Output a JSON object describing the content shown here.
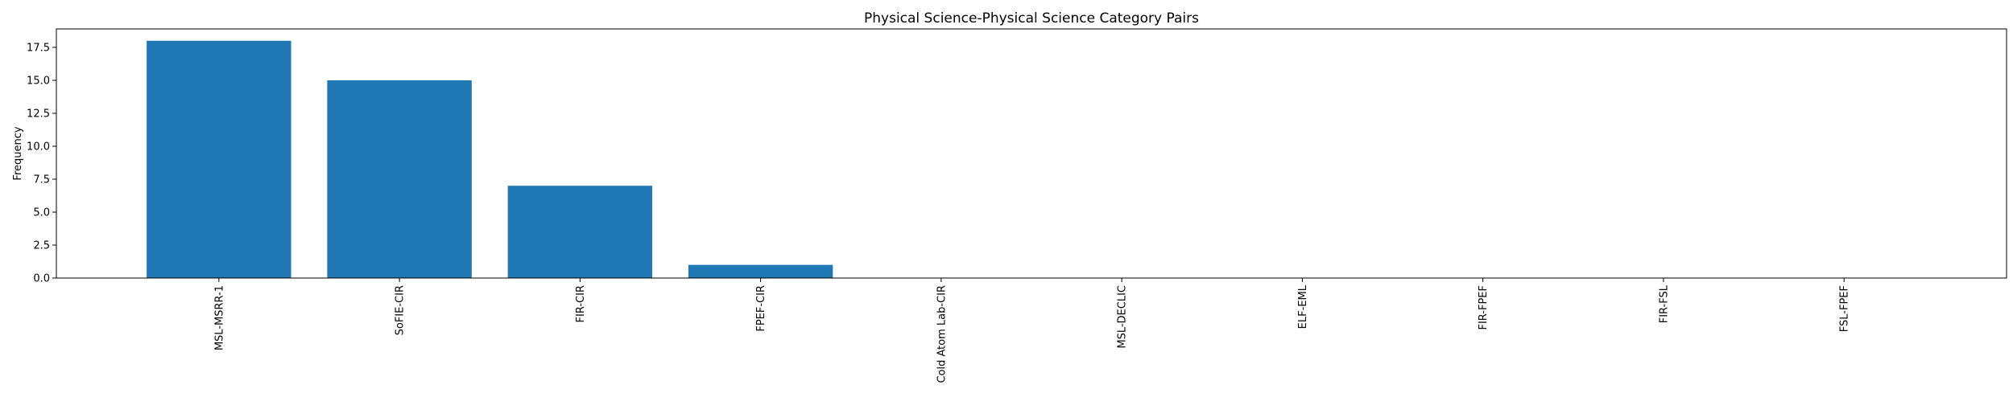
{
  "chart_data": {
    "type": "bar",
    "title": "Physical Science-Physical Science Category Pairs",
    "xlabel": "",
    "ylabel": "Frequency",
    "categories": [
      "MSL-MSRR-1",
      "SoFIE-CIR",
      "FIR-CIR",
      "FPEF-CIR",
      "Cold Atom Lab-CIR",
      "MSL-DECLIC",
      "ELF-EML",
      "FIR-FPEF",
      "FIR-FSL",
      "FSL-FPEF"
    ],
    "values": [
      18,
      15,
      7,
      1,
      0,
      0,
      0,
      0,
      0,
      0
    ],
    "ylim": [
      0,
      18.9
    ],
    "yticks": [
      0.0,
      2.5,
      5.0,
      7.5,
      10.0,
      12.5,
      15.0,
      17.5
    ],
    "ytick_labels": [
      "0.0",
      "2.5",
      "5.0",
      "7.5",
      "10.0",
      "12.5",
      "15.0",
      "17.5"
    ],
    "grid": false,
    "bar_color": "#1f77b4"
  }
}
